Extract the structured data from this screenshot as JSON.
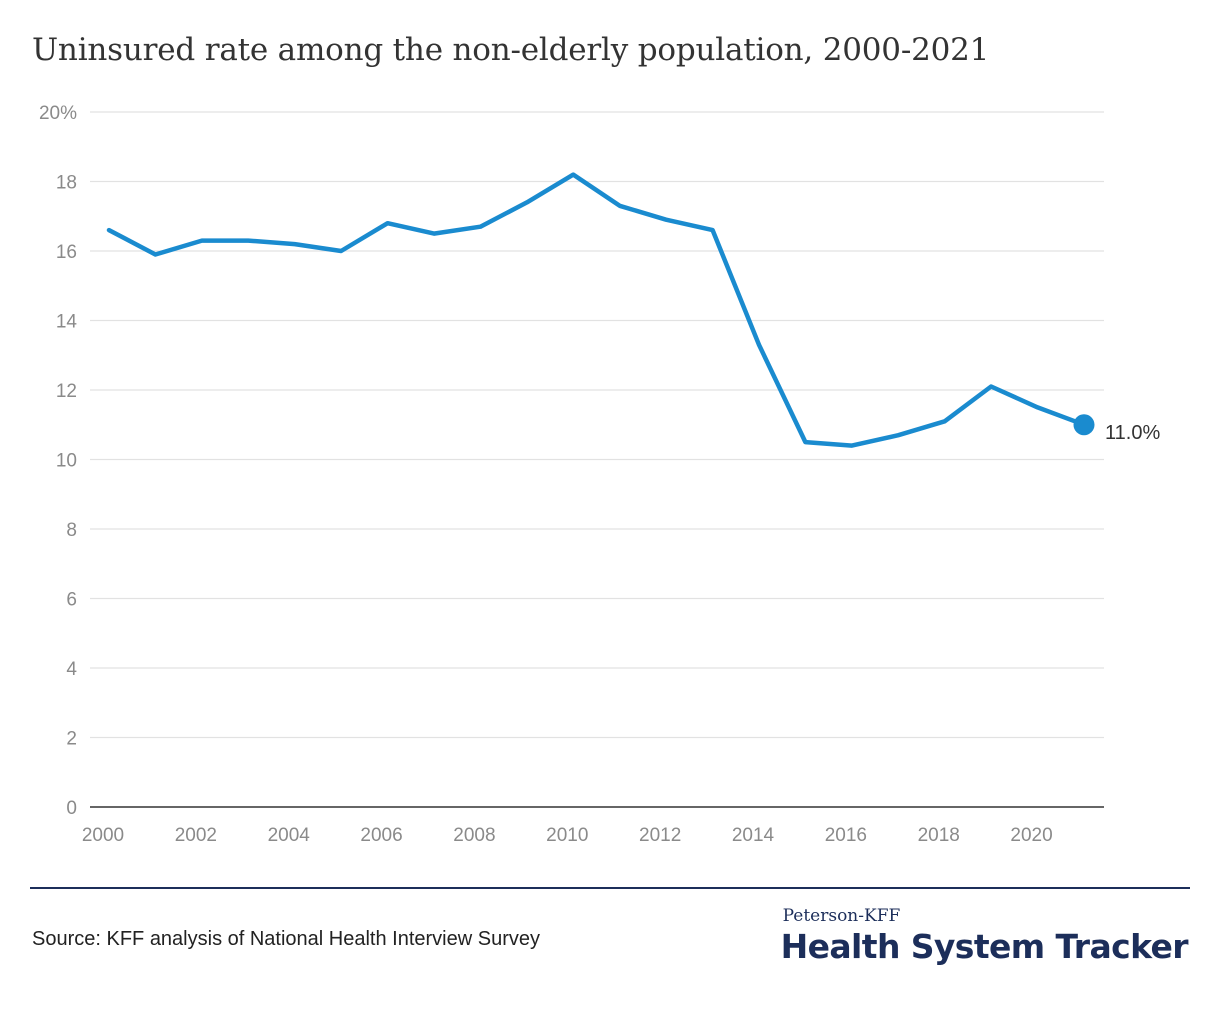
{
  "title": "Uninsured rate among the non-elderly population, 2000-2021",
  "source": "Source: KFF analysis of National Health Interview Survey",
  "brand": {
    "top": "Peterson-KFF",
    "main": "Health System Tracker"
  },
  "colors": {
    "line": "#1a8bcf",
    "brand": "#1c2e5a",
    "grid": "#e2e2e2",
    "axis": "#333333",
    "tick_text": "#8a8a8a"
  },
  "chart_data": {
    "type": "line",
    "title": "Uninsured rate among the non-elderly population, 2000-2021",
    "xlabel": "",
    "ylabel": "",
    "grid": true,
    "legend": "none",
    "ylim": [
      0,
      20
    ],
    "xlim": [
      2000,
      2021
    ],
    "y_ticks": [
      0,
      2,
      4,
      6,
      8,
      10,
      12,
      14,
      16,
      18,
      20
    ],
    "y_tick_labels": [
      "0",
      "2",
      "4",
      "6",
      "8",
      "10",
      "12",
      "14",
      "16",
      "18",
      "20%"
    ],
    "x_ticks": [
      2000,
      2002,
      2004,
      2006,
      2008,
      2010,
      2012,
      2014,
      2016,
      2018,
      2020
    ],
    "x_tick_labels": [
      "2000",
      "2002",
      "2004",
      "2006",
      "2008",
      "2010",
      "2012",
      "2014",
      "2016",
      "2018",
      "2020"
    ],
    "x": [
      2000,
      2001,
      2002,
      2003,
      2004,
      2005,
      2006,
      2007,
      2008,
      2009,
      2010,
      2011,
      2012,
      2013,
      2014,
      2015,
      2016,
      2017,
      2018,
      2019,
      2020,
      2021
    ],
    "series": [
      {
        "values": [
          16.6,
          15.9,
          16.3,
          16.3,
          16.2,
          16.0,
          16.8,
          16.5,
          16.7,
          17.4,
          18.2,
          17.3,
          16.9,
          16.6,
          13.3,
          10.5,
          10.4,
          10.7,
          11.1,
          12.1,
          11.5,
          11.0
        ],
        "color": "#1a8bcf"
      }
    ],
    "annotations": [
      {
        "x": 2021,
        "y": 11.0,
        "text": "11.0%"
      }
    ]
  }
}
